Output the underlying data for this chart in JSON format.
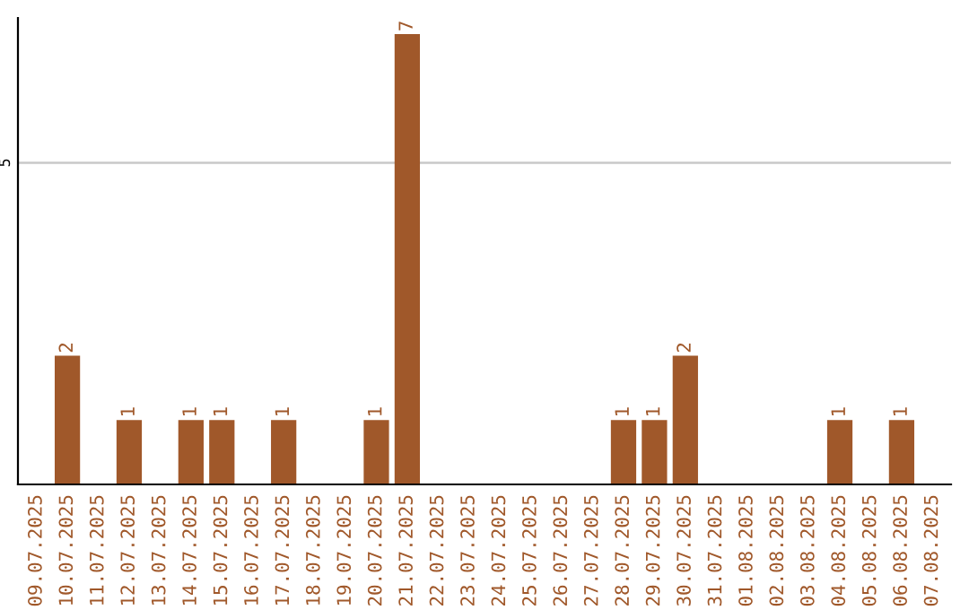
{
  "chart_data": {
    "type": "bar",
    "categories": [
      "09.07.2025",
      "10.07.2025",
      "11.07.2025",
      "12.07.2025",
      "13.07.2025",
      "14.07.2025",
      "15.07.2025",
      "16.07.2025",
      "17.07.2025",
      "18.07.2025",
      "19.07.2025",
      "20.07.2025",
      "21.07.2025",
      "22.07.2025",
      "23.07.2025",
      "24.07.2025",
      "25.07.2025",
      "26.07.2025",
      "27.07.2025",
      "28.07.2025",
      "29.07.2025",
      "30.07.2025",
      "31.07.2025",
      "01.08.2025",
      "02.08.2025",
      "03.08.2025",
      "04.08.2025",
      "05.08.2025",
      "06.08.2025",
      "07.08.2025"
    ],
    "values": [
      0,
      2,
      0,
      1,
      0,
      1,
      1,
      0,
      1,
      0,
      0,
      1,
      7,
      0,
      0,
      0,
      0,
      0,
      0,
      1,
      1,
      2,
      0,
      0,
      0,
      0,
      1,
      0,
      1,
      0
    ],
    "value_labels": [
      null,
      "2",
      null,
      "1",
      null,
      "1",
      "1",
      null,
      "1",
      null,
      null,
      "1",
      "7",
      null,
      null,
      null,
      null,
      null,
      null,
      "1",
      "1",
      "2",
      null,
      null,
      null,
      null,
      "1",
      null,
      "1",
      null
    ],
    "color": "#a0582a",
    "ylim": [
      0,
      7.25
    ],
    "yticks": [
      5
    ],
    "grid": "y",
    "legend": false
  }
}
